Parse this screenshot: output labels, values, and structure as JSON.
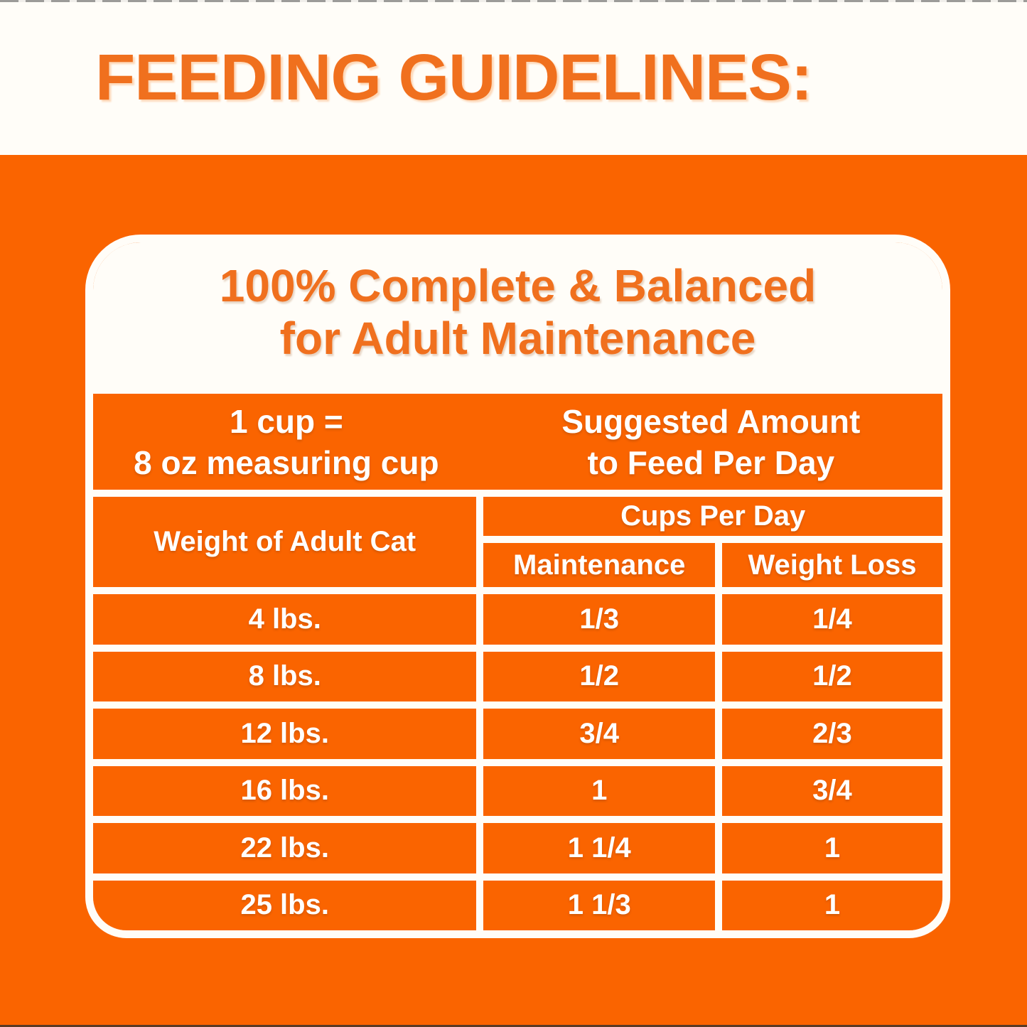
{
  "colors": {
    "orange_bg": "#FA6400",
    "orange_text": "#F0701E",
    "panel_white": "#FFFDF8",
    "edge_line": "#55504A"
  },
  "header": {
    "title": "FEEDING GUIDELINES:"
  },
  "card": {
    "title_line1": "100% Complete & Balanced",
    "title_line2": "for Adult Maintenance",
    "measure_note": {
      "line1": "1 cup =",
      "line2": "8 oz measuring cup"
    },
    "suggested_note": {
      "line1": "Suggested Amount",
      "line2": "to Feed Per Day"
    },
    "table": {
      "weight_header": "Weight of Adult Cat",
      "cups_header": "Cups Per Day",
      "subheaders": [
        "Maintenance",
        "Weight Loss"
      ],
      "rows": [
        {
          "weight": "4 lbs.",
          "maintenance": "1/3",
          "weight_loss": "1/4"
        },
        {
          "weight": "8 lbs.",
          "maintenance": "1/2",
          "weight_loss": "1/2"
        },
        {
          "weight": "12 lbs.",
          "maintenance": "3/4",
          "weight_loss": "2/3"
        },
        {
          "weight": "16 lbs.",
          "maintenance": "1",
          "weight_loss": "3/4"
        },
        {
          "weight": "22 lbs.",
          "maintenance": "1 1/4",
          "weight_loss": "1"
        },
        {
          "weight": "25 lbs.",
          "maintenance": "1 1/3",
          "weight_loss": "1"
        }
      ]
    }
  }
}
